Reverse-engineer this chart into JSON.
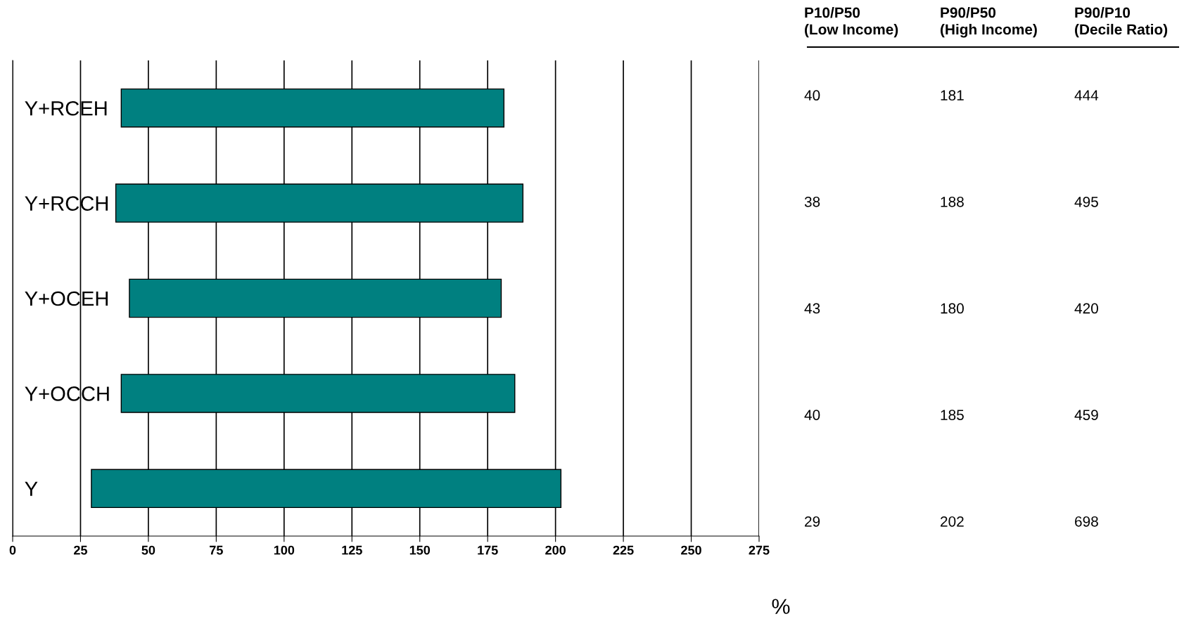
{
  "chart_data": {
    "type": "bar",
    "orientation": "horizontal",
    "xlabel": "%",
    "categories": [
      "Y+RCEH",
      "Y+RCCH",
      "Y+OCEH",
      "Y+OCCH",
      "Y"
    ],
    "base": [
      40,
      38,
      43,
      40,
      29
    ],
    "values": [
      141,
      150,
      137,
      145,
      173
    ],
    "color": "#008080",
    "xlim": [
      0,
      275
    ],
    "xticks": [
      0,
      25,
      50,
      75,
      100,
      125,
      150,
      175,
      200,
      225,
      250,
      275
    ],
    "grid": "x",
    "annotations": [
      "P10/P50\n(Low Income)",
      "P90/P50\n(High Income)",
      "P90/P10\n(Decile Ratio)",
      "40",
      "181",
      "444",
      "38",
      "188",
      "495",
      "43",
      "180",
      "420",
      "40",
      "185",
      "459",
      "29",
      "202",
      "698"
    ]
  }
}
